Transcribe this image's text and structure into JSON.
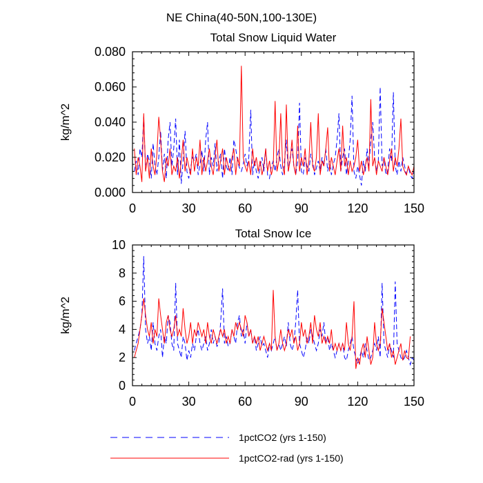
{
  "figure_title": "NE China(40-50N,100-130E)",
  "legend": {
    "series1_label": "1pctCO2 (yrs 1-150)",
    "series2_label": "1pctCO2-rad (yrs 1-150)"
  },
  "colors": {
    "series1": "#0000ff",
    "series2": "#ff0000",
    "axis": "#000000"
  },
  "chart_data": [
    {
      "type": "line",
      "title": "Total Snow Liquid Water",
      "xlabel": "",
      "ylabel": "kg/m^2",
      "xlim": [
        0,
        150
      ],
      "ylim": [
        0,
        0.08
      ],
      "xticks": [
        0,
        30,
        60,
        90,
        120,
        150
      ],
      "xtick_labels": [
        "0",
        "30",
        "60",
        "90",
        "120",
        "150"
      ],
      "yticks": [
        0,
        0.02,
        0.04,
        0.06,
        0.08
      ],
      "ytick_labels": [
        "0.000",
        "0.020",
        "0.040",
        "0.060",
        "0.080"
      ],
      "series": [
        {
          "name": "1pctCO2 (yrs 1-150)",
          "style": "dashed",
          "x_start": 1,
          "values": [
            0.012,
            0.018,
            0.01,
            0.025,
            0.02,
            0.043,
            0.012,
            0.022,
            0.018,
            0.008,
            0.028,
            0.015,
            0.01,
            0.02,
            0.035,
            0.012,
            0.022,
            0.008,
            0.03,
            0.04,
            0.015,
            0.025,
            0.042,
            0.01,
            0.03,
            0.005,
            0.018,
            0.035,
            0.012,
            0.008,
            0.014,
            0.02,
            0.018,
            0.022,
            0.01,
            0.016,
            0.024,
            0.012,
            0.03,
            0.04,
            0.01,
            0.02,
            0.015,
            0.028,
            0.012,
            0.018,
            0.022,
            0.008,
            0.025,
            0.015,
            0.012,
            0.02,
            0.01,
            0.03,
            0.025,
            0.018,
            0.014,
            0.012,
            0.016,
            0.022,
            0.015,
            0.02,
            0.047,
            0.01,
            0.018,
            0.012,
            0.008,
            0.015,
            0.02,
            0.012,
            0.025,
            0.01,
            0.008,
            0.015,
            0.018,
            0.012,
            0.02,
            0.025,
            0.015,
            0.01,
            0.018,
            0.03,
            0.012,
            0.02,
            0.025,
            0.015,
            0.01,
            0.018,
            0.051,
            0.012,
            0.01,
            0.02,
            0.015,
            0.012,
            0.022,
            0.018,
            0.01,
            0.014,
            0.018,
            0.012,
            0.02,
            0.015,
            0.025,
            0.012,
            0.018,
            0.01,
            0.016,
            0.02,
            0.03,
            0.045,
            0.012,
            0.02,
            0.025,
            0.01,
            0.018,
            0.03,
            0.055,
            0.012,
            0.008,
            0.015,
            0.01,
            0.004,
            0.018,
            0.012,
            0.025,
            0.015,
            0.03,
            0.04,
            0.02,
            0.012,
            0.018,
            0.06,
            0.015,
            0.02,
            0.01,
            0.012,
            0.025,
            0.018,
            0.057,
            0.015,
            0.01,
            0.018,
            0.012,
            0.02,
            0.015,
            0.01,
            0.015,
            0.01,
            0.008,
            0.012
          ]
        },
        {
          "name": "1pctCO2-rad (yrs 1-150)",
          "style": "solid",
          "x_start": 1,
          "values": [
            0.025,
            0.01,
            0.02,
            0.015,
            0.006,
            0.045,
            0.012,
            0.02,
            0.008,
            0.025,
            0.015,
            0.01,
            0.022,
            0.043,
            0.03,
            0.012,
            0.006,
            0.02,
            0.015,
            0.025,
            0.01,
            0.015,
            0.012,
            0.02,
            0.008,
            0.018,
            0.03,
            0.012,
            0.02,
            0.015,
            0.01,
            0.025,
            0.012,
            0.02,
            0.015,
            0.03,
            0.01,
            0.02,
            0.012,
            0.018,
            0.025,
            0.015,
            0.01,
            0.02,
            0.03,
            0.012,
            0.018,
            0.025,
            0.01,
            0.02,
            0.015,
            0.012,
            0.02,
            0.025,
            0.01,
            0.02,
            0.015,
            0.072,
            0.02,
            0.015,
            0.012,
            0.018,
            0.01,
            0.025,
            0.015,
            0.02,
            0.012,
            0.018,
            0.01,
            0.015,
            0.025,
            0.012,
            0.018,
            0.01,
            0.015,
            0.052,
            0.012,
            0.018,
            0.045,
            0.015,
            0.01,
            0.05,
            0.012,
            0.018,
            0.03,
            0.015,
            0.01,
            0.038,
            0.012,
            0.02,
            0.015,
            0.025,
            0.01,
            0.018,
            0.04,
            0.015,
            0.012,
            0.02,
            0.045,
            0.01,
            0.018,
            0.015,
            0.025,
            0.037,
            0.012,
            0.02,
            0.015,
            0.01,
            0.018,
            0.025,
            0.012,
            0.038,
            0.015,
            0.02,
            0.01,
            0.018,
            0.012,
            0.015,
            0.02,
            0.03,
            0.012,
            0.018,
            0.01,
            0.015,
            0.02,
            0.012,
            0.053,
            0.015,
            0.02,
            0.01,
            0.018,
            0.015,
            0.012,
            0.02,
            0.015,
            0.01,
            0.018,
            0.025,
            0.012,
            0.02,
            0.015,
            0.025,
            0.042,
            0.015,
            0.012,
            0.01,
            0.015,
            0.012,
            0.01,
            0.015
          ]
        }
      ]
    },
    {
      "type": "line",
      "title": "Total Snow Ice",
      "xlabel": "",
      "ylabel": "kg/m^2",
      "xlim": [
        0,
        150
      ],
      "ylim": [
        0,
        10
      ],
      "xticks": [
        0,
        30,
        60,
        90,
        120,
        150
      ],
      "xtick_labels": [
        "0",
        "30",
        "60",
        "90",
        "120",
        "150"
      ],
      "yticks": [
        0,
        2,
        4,
        6,
        8,
        10
      ],
      "ytick_labels": [
        "0",
        "2",
        "4",
        "6",
        "8",
        "10"
      ],
      "series": [
        {
          "name": "1pctCO2 (yrs 1-150)",
          "style": "dashed",
          "x_start": 1,
          "values": [
            2.5,
            3.0,
            3.5,
            4.0,
            5.0,
            9.2,
            4.0,
            3.0,
            3.5,
            2.5,
            4.5,
            3.0,
            2.5,
            3.5,
            4.0,
            2.0,
            3.5,
            3.0,
            5.0,
            4.5,
            3.0,
            2.5,
            7.3,
            3.0,
            2.5,
            2.0,
            3.5,
            3.0,
            1.8,
            2.5,
            2.0,
            3.0,
            2.5,
            3.5,
            4.0,
            3.0,
            2.5,
            3.0,
            3.5,
            2.5,
            3.0,
            4.0,
            3.0,
            3.5,
            2.8,
            3.0,
            4.5,
            6.9,
            3.0,
            3.5,
            2.8,
            3.0,
            4.0,
            3.5,
            3.0,
            4.5,
            5.0,
            3.5,
            4.0,
            3.0,
            4.5,
            3.5,
            4.0,
            3.0,
            3.5,
            2.5,
            3.0,
            3.5,
            2.8,
            3.0,
            2.5,
            2.0,
            3.0,
            2.5,
            3.0,
            3.5,
            2.5,
            3.0,
            2.5,
            3.0,
            3.5,
            2.8,
            4.5,
            3.0,
            2.5,
            3.0,
            4.5,
            6.8,
            3.0,
            2.5,
            2.0,
            2.5,
            3.5,
            3.0,
            4.0,
            3.5,
            3.0,
            2.5,
            3.0,
            4.0,
            3.5,
            4.5,
            3.0,
            3.5,
            2.5,
            3.0,
            2.5,
            2.0,
            2.5,
            3.0,
            2.5,
            3.0,
            2.0,
            1.8,
            2.5,
            3.0,
            3.5,
            2.5,
            2.0,
            1.5,
            2.0,
            2.5,
            2.0,
            3.0,
            2.5,
            1.8,
            2.0,
            2.5,
            3.0,
            2.5,
            3.5,
            2.0,
            7.3,
            3.0,
            2.5,
            2.0,
            3.0,
            2.5,
            2.0,
            7.4,
            3.0,
            2.5,
            2.0,
            1.8,
            2.0,
            2.5,
            2.0,
            1.5,
            2.0,
            1.8
          ]
        },
        {
          "name": "1pctCO2-rad (yrs 1-150)",
          "style": "solid",
          "x_start": 1,
          "values": [
            2.0,
            2.5,
            3.0,
            4.0,
            5.0,
            6.2,
            5.0,
            4.0,
            3.5,
            4.5,
            3.0,
            4.0,
            3.5,
            6.2,
            5.0,
            4.0,
            3.0,
            4.5,
            5.0,
            4.0,
            3.5,
            4.0,
            5.0,
            3.5,
            4.0,
            3.5,
            5.5,
            4.0,
            3.0,
            3.5,
            4.5,
            3.0,
            4.0,
            3.5,
            4.5,
            4.0,
            3.5,
            4.0,
            3.0,
            4.5,
            3.5,
            3.0,
            4.0,
            3.5,
            3.0,
            3.5,
            4.0,
            3.5,
            4.0,
            3.0,
            3.5,
            3.0,
            4.0,
            3.5,
            4.5,
            4.0,
            4.5,
            4.0,
            3.5,
            5.0,
            4.5,
            3.5,
            4.0,
            3.0,
            3.5,
            3.0,
            3.5,
            2.5,
            3.0,
            3.5,
            3.0,
            2.5,
            3.0,
            2.5,
            6.8,
            3.5,
            2.5,
            3.0,
            4.0,
            3.0,
            2.5,
            3.0,
            4.0,
            3.5,
            4.0,
            3.0,
            3.5,
            2.5,
            3.0,
            4.5,
            3.5,
            4.0,
            3.0,
            3.5,
            4.5,
            3.0,
            5.0,
            4.0,
            3.5,
            4.5,
            3.0,
            3.5,
            3.0,
            3.5,
            3.0,
            4.0,
            2.5,
            3.0,
            2.5,
            3.0,
            2.5,
            3.0,
            2.5,
            4.5,
            3.0,
            2.5,
            3.5,
            6.0,
            1.2,
            2.0,
            1.5,
            2.5,
            3.0,
            2.0,
            3.5,
            2.5,
            1.5,
            2.0,
            4.5,
            3.0,
            2.5,
            3.0,
            5.5,
            4.5,
            3.5,
            2.5,
            3.0,
            2.0,
            2.5,
            1.5,
            2.0,
            2.5,
            3.0,
            1.8,
            2.5,
            2.0,
            1.9,
            3.5
          ]
        }
      ]
    }
  ]
}
